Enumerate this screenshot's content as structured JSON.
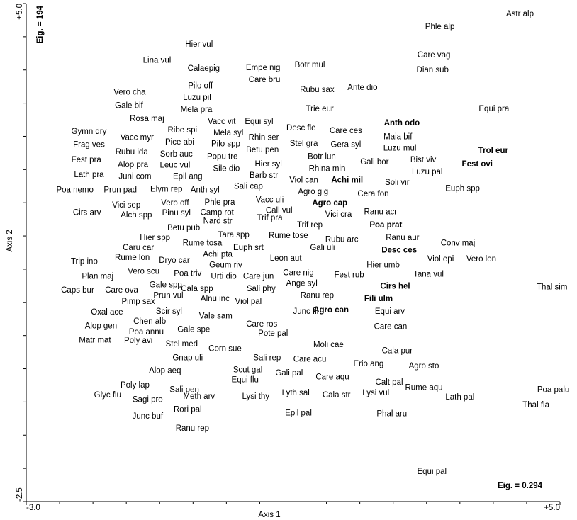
{
  "chart_data": {
    "type": "scatter",
    "x_label": "Axis 1",
    "y_label": "Axis 2",
    "annotations": [
      "Eig. = 194",
      "Eig. = 0.294"
    ],
    "xlim": [
      -3.0,
      5.0
    ],
    "ylim": [
      -2.5,
      5.0
    ],
    "xticks": [
      {
        "value": -3.0,
        "label": "-3.0"
      },
      {
        "value": 5.0,
        "label": "+5.0"
      }
    ],
    "yticks": [
      {
        "value": -2.5,
        "label": "-2.5"
      },
      {
        "value": 5.0,
        "label": "+5.0"
      }
    ],
    "xminor_ticks": [
      -2.5,
      -2,
      -1.5,
      -1,
      -0.5,
      0,
      0.5,
      1,
      1.5,
      2,
      2.5,
      3,
      3.5,
      4,
      4.5
    ],
    "yminor_ticks": [
      -2,
      -1.5,
      -1,
      -0.5,
      0,
      0.5,
      1,
      1.5,
      2,
      2.5,
      3,
      3.5,
      4,
      4.5
    ],
    "color": "#000000",
    "labels": [
      "Astr alp",
      "Phle alp",
      "Hier vul",
      "Lina vul",
      "Calaepig",
      "Empe nig",
      "Botr mul",
      "Care vag",
      "Dian sub",
      "Care bru",
      "Rubu sax",
      "Ante dio",
      "Pilo off",
      "Luzu pil",
      "Vero cha",
      "Gale bif",
      "Mela pra",
      "Trie eur",
      "Equi pra",
      "Rosa maj",
      "Vacc vit",
      "Equi syl",
      "Anth odo",
      "Gymn dry",
      "Ribe spi",
      "Mela syl",
      "Desc fle",
      "Care ces",
      "Maia bif",
      "Frag ves",
      "Vacc myr",
      "Pice abi",
      "Rhin ser",
      "Pilo spp",
      "Stel gra",
      "Gera syl",
      "Luzu mul",
      "Trol eur",
      "Rubu ida",
      "Sorb auc",
      "Popu tre",
      "Betu pen",
      "Fest pra",
      "Alop pra",
      "Leuc vul",
      "Sile dio",
      "Botr lun",
      "Gali bor",
      "Bist viv",
      "Fest ovi",
      "Hier syl",
      "Rhina min",
      "Luzu pal",
      "Lath pra",
      "Juni com",
      "Epil ang",
      "Barb str",
      "Viol can",
      "Achi mil",
      "Soli vir",
      "Poa nemo",
      "Prun pad",
      "Elym rep",
      "Anth syl",
      "Sali cap",
      "Agro gig",
      "Cera fon",
      "Euph spp",
      "Vero off",
      "Phle pra",
      "Vacc uli",
      "Agro cap",
      "Vici sep",
      "Cirs arv",
      "Call vul",
      "Camp rot",
      "Vici cra",
      "Ranu acr",
      "Alch spp",
      "Pinu syl",
      "Trif pra",
      "Trif rep",
      "Poa prat",
      "Nard str",
      "Betu pub",
      "Tara spp",
      "Rume tose",
      "Hier spp",
      "Rubu arc",
      "Ranu aur",
      "Conv maj",
      "Caru car",
      "Rume tosa",
      "Euph srt",
      "Desc ces",
      "Gali uli",
      "Achi pta",
      "Trip ino",
      "Rume lon",
      "Dryo car",
      "Geum riv",
      "Leon aut",
      "Hier umb",
      "Viol epi",
      "Vero lon",
      "Plan maj",
      "Vero scu",
      "Poa triv",
      "Urti dio",
      "Care jun",
      "Care nig",
      "Fest rub",
      "Tana vul",
      "Ange syl",
      "Sali phy",
      "Cala spp",
      "Gale spp",
      "Cirs hel",
      "Thal sim",
      "Caps bur",
      "Care ova",
      "Pimp sax",
      "Prun vul",
      "Alnu inc",
      "Viol pal",
      "Ranu rep",
      "Fili ulm",
      "Oxal ace",
      "Scir syl",
      "Vale sam",
      "Junc fil",
      "Agro can",
      "Equi arv",
      "Chen alb",
      "Care ros",
      "Alop gen",
      "Poa annu",
      "Gale spe",
      "Pote pal",
      "Care can",
      "Matr mat",
      "Poly avi",
      "Stel med",
      "Corn sue",
      "Moli cae",
      "Cala pur",
      "Gnap uli",
      "Sali rep",
      "Care acu",
      "Erio ang",
      "Agro sto",
      "Alop aeq",
      "Scut gal",
      "Gali pal",
      "Care aqu",
      "Calt pal",
      "Poly lap",
      "Equi flu",
      "Sali pen",
      "Rume aqu",
      "Poa palu",
      "Lyth sal",
      "Glyc flu",
      "Sagi pro",
      "Meth arv",
      "Lysi thy",
      "Cala str",
      "Lysi vul",
      "Lath pal",
      "Thal fla",
      "Rori pal",
      "Junc buf",
      "Epil pal",
      "Phal aru",
      "Ranu rep",
      "Equi pal"
    ],
    "x": [
      4.4,
      3.2,
      -0.41,
      -1.04,
      -0.34,
      0.55,
      1.25,
      3.11,
      3.09,
      0.57,
      1.36,
      2.04,
      -0.39,
      -0.44,
      -1.45,
      -1.46,
      -0.45,
      1.4,
      4.01,
      -1.19,
      -0.07,
      0.49,
      2.63,
      -2.06,
      -0.66,
      0.03,
      1.12,
      1.79,
      2.57,
      -2.06,
      -1.34,
      -0.7,
      0.56,
      -0.01,
      1.16,
      1.79,
      2.6,
      4.0,
      -1.42,
      -0.75,
      -0.06,
      0.54,
      -2.1,
      -1.4,
      -0.77,
      0.0,
      1.43,
      2.22,
      2.95,
      3.76,
      0.63,
      1.51,
      3.01,
      -2.06,
      -1.37,
      -0.58,
      0.56,
      1.16,
      1.81,
      2.56,
      -2.27,
      -1.59,
      -0.9,
      -0.32,
      0.33,
      1.3,
      2.2,
      3.54,
      -0.77,
      -0.1,
      0.65,
      1.55,
      -1.5,
      -2.09,
      0.79,
      -0.14,
      1.68,
      2.31,
      -1.35,
      -0.75,
      0.65,
      1.25,
      2.39,
      -0.13,
      -0.64,
      0.11,
      0.93,
      -1.07,
      1.73,
      2.64,
      3.47,
      -1.32,
      -0.36,
      0.33,
      2.59,
      1.44,
      -0.13,
      -2.13,
      -1.41,
      -0.78,
      -0.01,
      0.89,
      2.35,
      3.21,
      3.82,
      -1.93,
      -1.24,
      -0.58,
      -0.04,
      0.48,
      1.08,
      1.84,
      3.03,
      1.13,
      0.52,
      -0.44,
      -0.91,
      2.53,
      4.88,
      -2.23,
      -1.57,
      -1.32,
      -0.87,
      -0.17,
      0.33,
      1.36,
      2.28,
      -1.79,
      -0.86,
      -0.16,
      1.19,
      1.57,
      2.45,
      -1.15,
      0.53,
      -1.88,
      -1.2,
      -0.49,
      0.7,
      2.46,
      -1.97,
      -1.32,
      -0.67,
      -0.02,
      1.53,
      2.56,
      -0.58,
      0.61,
      1.25,
      2.13,
      2.96,
      -0.92,
      0.32,
      0.94,
      1.59,
      2.44,
      -1.37,
      0.28,
      -0.63,
      2.96,
      4.9,
      1.04,
      -1.78,
      -1.18,
      -0.41,
      0.44,
      1.65,
      2.24,
      3.5,
      4.64,
      -0.58,
      -1.18,
      1.08,
      2.48,
      -0.51,
      3.08
    ],
    "y": [
      4.84,
      4.65,
      4.38,
      4.14,
      4.02,
      4.03,
      4.07,
      4.22,
      4.0,
      3.85,
      3.7,
      3.73,
      3.76,
      3.58,
      3.66,
      3.46,
      3.4,
      3.41,
      3.41,
      3.26,
      3.22,
      3.22,
      3.2,
      3.07,
      3.09,
      3.05,
      3.12,
      3.08,
      2.99,
      2.87,
      2.98,
      2.91,
      2.98,
      2.88,
      2.89,
      2.87,
      2.82,
      2.78,
      2.76,
      2.73,
      2.69,
      2.79,
      2.64,
      2.57,
      2.56,
      2.51,
      2.69,
      2.61,
      2.64,
      2.58,
      2.58,
      2.51,
      2.46,
      2.42,
      2.39,
      2.39,
      2.41,
      2.34,
      2.34,
      2.3,
      2.19,
      2.19,
      2.2,
      2.19,
      2.24,
      2.16,
      2.13,
      2.21,
      1.99,
      2.0,
      2.04,
      1.99,
      1.96,
      1.85,
      1.88,
      1.85,
      1.82,
      1.86,
      1.81,
      1.84,
      1.77,
      1.66,
      1.66,
      1.72,
      1.62,
      1.51,
      1.5,
      1.47,
      1.44,
      1.47,
      1.39,
      1.32,
      1.39,
      1.32,
      1.28,
      1.32,
      1.22,
      1.11,
      1.17,
      1.13,
      1.06,
      1.16,
      1.06,
      1.15,
      1.15,
      0.89,
      0.96,
      0.93,
      0.89,
      0.89,
      0.94,
      0.91,
      0.92,
      0.78,
      0.7,
      0.7,
      0.76,
      0.74,
      0.73,
      0.68,
      0.68,
      0.51,
      0.6,
      0.55,
      0.51,
      0.6,
      0.55,
      0.35,
      0.36,
      0.29,
      0.36,
      0.38,
      0.36,
      0.21,
      0.17,
      0.14,
      0.05,
      0.09,
      0.03,
      0.13,
      -0.07,
      -0.08,
      -0.13,
      -0.2,
      -0.14,
      -0.23,
      -0.34,
      -0.34,
      -0.36,
      -0.43,
      -0.46,
      -0.53,
      -0.52,
      -0.57,
      -0.63,
      -0.71,
      -0.75,
      -0.67,
      -0.82,
      -0.79,
      -0.82,
      -0.87,
      -0.9,
      -0.97,
      -0.92,
      -0.92,
      -0.9,
      -0.87,
      -0.93,
      -1.05,
      -1.12,
      -1.22,
      -1.17,
      -1.18,
      -1.4,
      -2.05
    ],
    "bold": [
      false,
      false,
      false,
      false,
      false,
      false,
      false,
      false,
      false,
      false,
      false,
      false,
      false,
      false,
      false,
      false,
      false,
      false,
      false,
      false,
      false,
      false,
      true,
      false,
      false,
      false,
      false,
      false,
      false,
      false,
      false,
      false,
      false,
      false,
      false,
      false,
      false,
      true,
      false,
      false,
      false,
      false,
      false,
      false,
      false,
      false,
      false,
      false,
      false,
      true,
      false,
      false,
      false,
      false,
      false,
      false,
      false,
      false,
      true,
      false,
      false,
      false,
      false,
      false,
      false,
      false,
      false,
      false,
      false,
      false,
      false,
      true,
      false,
      false,
      false,
      false,
      false,
      false,
      false,
      false,
      false,
      false,
      true,
      false,
      false,
      false,
      false,
      false,
      false,
      false,
      false,
      false,
      false,
      false,
      true,
      false,
      false,
      false,
      false,
      false,
      false,
      false,
      false,
      false,
      false,
      false,
      false,
      false,
      false,
      false,
      false,
      false,
      false,
      false,
      false,
      false,
      false,
      true,
      false,
      false,
      false,
      false,
      false,
      false,
      false,
      false,
      true,
      false,
      false,
      false,
      false,
      true,
      false,
      false,
      false,
      false,
      false,
      false,
      false,
      false,
      false,
      false,
      false,
      false,
      false,
      false,
      false,
      false,
      false,
      false,
      false,
      false,
      false,
      false,
      false,
      false,
      false,
      false,
      false,
      false,
      false,
      false,
      false,
      false,
      false,
      false,
      false,
      false,
      false,
      false,
      false,
      false,
      false,
      false,
      false,
      false,
      false,
      false,
      false
    ]
  }
}
